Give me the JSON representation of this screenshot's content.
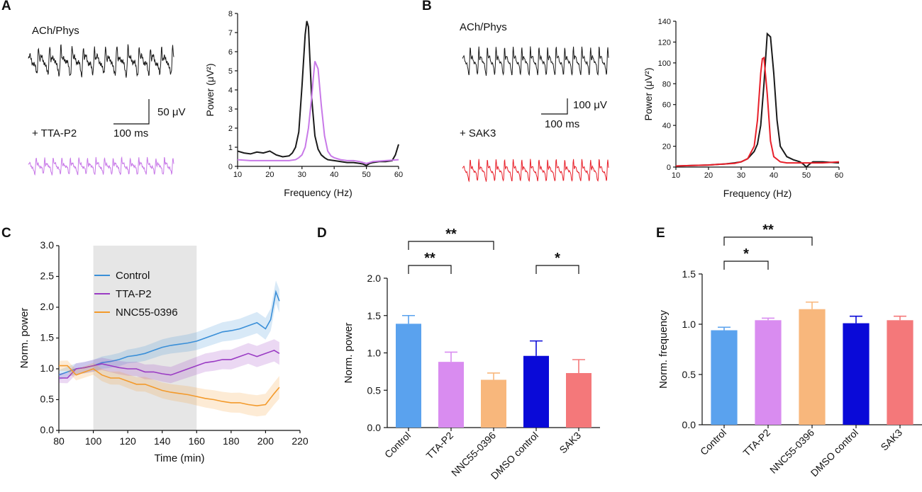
{
  "panel_labels": {
    "a": "A",
    "b": "B",
    "c": "C",
    "d": "D",
    "e": "E"
  },
  "colors": {
    "black": "#1a1a1a",
    "violet": "#c879e8",
    "red": "#e8202a",
    "blue": "#3a8fd8",
    "purple": "#9a3bc4",
    "orange": "#f39a2b",
    "gray_band": "#e6e6e6",
    "bar_control": "#5aa2ee",
    "bar_ttap2": "#d98cf0",
    "bar_nnc": "#f8b77c",
    "bar_dmso": "#0a0ad8",
    "bar_sak3": "#f4787a"
  },
  "panel_a": {
    "trace_top_label": "ACh/Phys",
    "trace_bottom_label": "+ TTA-P2",
    "scale_v": "50 μV",
    "scale_t": "100 ms"
  },
  "panel_b": {
    "trace_top_label": "ACh/Phys",
    "trace_bottom_label": "+ SAK3",
    "scale_v": "100 μV",
    "scale_t": "100 ms"
  },
  "chart_data": [
    {
      "id": "A-spectrum",
      "type": "line",
      "xlabel": "Frequency (Hz)",
      "ylabel": "Power (μV²)",
      "xlim": [
        10,
        60
      ],
      "ylim": [
        0,
        8
      ],
      "xticks": [
        10,
        20,
        30,
        40,
        50,
        60
      ],
      "yticks": [
        0,
        1,
        2,
        3,
        4,
        5,
        6,
        7,
        8
      ],
      "series": [
        {
          "name": "ACh/Phys",
          "color": "#1a1a1a",
          "x": [
            10,
            12,
            14,
            16,
            18,
            20,
            22,
            24,
            26,
            27,
            28,
            29,
            30,
            31,
            31.5,
            32,
            33,
            34,
            35,
            36,
            37,
            38,
            40,
            42,
            44,
            46,
            48,
            49,
            50,
            51,
            52,
            54,
            56,
            58,
            59,
            60
          ],
          "y": [
            0.8,
            0.7,
            0.65,
            0.75,
            0.7,
            0.8,
            0.6,
            0.5,
            0.55,
            0.7,
            1.0,
            1.8,
            4.2,
            6.9,
            7.6,
            7.3,
            3.6,
            1.6,
            0.9,
            0.6,
            0.45,
            0.35,
            0.3,
            0.25,
            0.2,
            0.2,
            0.15,
            0.12,
            0.05,
            0.15,
            0.2,
            0.25,
            0.25,
            0.3,
            0.6,
            1.15
          ]
        },
        {
          "name": "+ TTA-P2",
          "color": "#c879e8",
          "x": [
            10,
            14,
            18,
            22,
            26,
            28,
            29,
            30,
            31,
            32,
            33,
            33.5,
            34,
            35,
            36,
            37,
            38,
            39,
            40,
            42,
            44,
            46,
            48,
            50,
            52,
            56,
            60
          ],
          "y": [
            0.35,
            0.3,
            0.3,
            0.3,
            0.3,
            0.35,
            0.45,
            0.6,
            1.0,
            2.0,
            3.6,
            4.6,
            5.5,
            5.1,
            3.2,
            1.6,
            0.8,
            0.55,
            0.45,
            0.35,
            0.3,
            0.3,
            0.25,
            0.15,
            0.25,
            0.3,
            0.35
          ]
        }
      ]
    },
    {
      "id": "B-spectrum",
      "type": "line",
      "xlabel": "Frequency (Hz)",
      "ylabel": "Power (μV²)",
      "xlim": [
        10,
        60
      ],
      "ylim": [
        0,
        140
      ],
      "xticks": [
        10,
        20,
        30,
        40,
        50,
        60
      ],
      "yticks": [
        0,
        20,
        40,
        60,
        80,
        100,
        120,
        140
      ],
      "series": [
        {
          "name": "ACh/Phys",
          "color": "#1a1a1a",
          "x": [
            10,
            15,
            20,
            25,
            28,
            30,
            32,
            34,
            35,
            36,
            37,
            38,
            39,
            40,
            41,
            42,
            44,
            46,
            48,
            49,
            50,
            51,
            52,
            55,
            60
          ],
          "y": [
            1,
            1.5,
            2,
            3,
            4,
            5,
            8,
            15,
            22,
            40,
            80,
            128,
            125,
            90,
            45,
            20,
            10,
            7,
            5,
            3,
            0,
            3,
            5,
            5,
            4
          ]
        },
        {
          "name": "+ SAK3",
          "color": "#e8202a",
          "x": [
            10,
            15,
            20,
            25,
            28,
            30,
            32,
            34,
            35,
            36,
            36.5,
            37,
            38,
            39,
            40,
            42,
            44,
            46,
            48,
            50,
            52,
            55,
            60
          ],
          "y": [
            1,
            1.5,
            2,
            3,
            3.5,
            5,
            8,
            20,
            45,
            90,
            104,
            105,
            70,
            25,
            10,
            5,
            4,
            4,
            4,
            4,
            4,
            4,
            5
          ]
        }
      ]
    },
    {
      "id": "C-time",
      "type": "line",
      "xlabel": "Time (min)",
      "ylabel": "Norm. power",
      "xlim": [
        80,
        220
      ],
      "ylim": [
        0,
        3.0
      ],
      "xticks": [
        80,
        100,
        120,
        140,
        160,
        180,
        200,
        220
      ],
      "yticks": [
        0.0,
        0.5,
        1.0,
        1.5,
        2.0,
        2.5,
        3.0
      ],
      "shaded_interval": [
        100,
        160
      ],
      "series": [
        {
          "name": "Control",
          "color": "#3a8fd8",
          "x": [
            80,
            85,
            90,
            95,
            100,
            105,
            110,
            115,
            120,
            125,
            130,
            135,
            140,
            145,
            150,
            155,
            160,
            165,
            170,
            175,
            180,
            185,
            190,
            195,
            200,
            203,
            206,
            208
          ],
          "y": [
            0.9,
            0.95,
            1.0,
            1.02,
            1.05,
            1.1,
            1.12,
            1.15,
            1.2,
            1.22,
            1.25,
            1.3,
            1.35,
            1.38,
            1.4,
            1.42,
            1.45,
            1.5,
            1.55,
            1.6,
            1.62,
            1.65,
            1.7,
            1.75,
            1.65,
            1.8,
            2.25,
            2.1
          ]
        },
        {
          "name": "TTA-P2",
          "color": "#9a3bc4",
          "x": [
            80,
            85,
            90,
            95,
            100,
            105,
            110,
            115,
            120,
            125,
            130,
            135,
            140,
            145,
            150,
            155,
            160,
            165,
            170,
            175,
            180,
            185,
            190,
            195,
            200,
            205,
            208
          ],
          "y": [
            0.85,
            0.85,
            1.0,
            1.02,
            1.05,
            1.08,
            1.05,
            1.02,
            1.0,
            1.0,
            0.95,
            0.95,
            0.92,
            0.9,
            0.95,
            1.0,
            1.05,
            1.1,
            1.12,
            1.15,
            1.15,
            1.2,
            1.25,
            1.2,
            1.25,
            1.3,
            1.25
          ]
        },
        {
          "name": "NNC55-0396",
          "color": "#f39a2b",
          "x": [
            80,
            85,
            90,
            95,
            100,
            105,
            110,
            115,
            120,
            125,
            130,
            135,
            140,
            145,
            150,
            155,
            160,
            165,
            170,
            175,
            180,
            185,
            190,
            195,
            200,
            205,
            208
          ],
          "y": [
            1.05,
            1.05,
            0.9,
            0.95,
            1.0,
            0.9,
            0.85,
            0.85,
            0.8,
            0.75,
            0.75,
            0.7,
            0.65,
            0.62,
            0.6,
            0.58,
            0.55,
            0.52,
            0.5,
            0.47,
            0.45,
            0.45,
            0.42,
            0.4,
            0.42,
            0.6,
            0.7
          ]
        }
      ],
      "legend": [
        "Control",
        "TTA-P2",
        "NNC55-0396"
      ]
    },
    {
      "id": "D-bars",
      "type": "bar",
      "ylabel": "Norm. power",
      "ylim": [
        0,
        2.0
      ],
      "yticks": [
        0.0,
        0.5,
        1.0,
        1.5,
        2.0
      ],
      "categories": [
        "Control",
        "TTA-P2",
        "NNC55-0396",
        "DMSO control",
        "SAK3"
      ],
      "values": [
        1.39,
        0.88,
        0.64,
        0.96,
        0.73
      ],
      "errors": [
        0.11,
        0.13,
        0.09,
        0.2,
        0.18
      ],
      "significance": [
        {
          "from": 0,
          "to": 2,
          "label": "**",
          "level": 2
        },
        {
          "from": 0,
          "to": 1,
          "label": "**",
          "level": 1
        },
        {
          "from": 3,
          "to": 4,
          "label": "*",
          "level": 1
        }
      ]
    },
    {
      "id": "E-bars",
      "type": "bar",
      "ylabel": "Norm. frequency",
      "ylim": [
        0,
        1.5
      ],
      "yticks": [
        0.0,
        0.5,
        1.0,
        1.5
      ],
      "categories": [
        "Control",
        "TTA-P2",
        "NNC55-0396",
        "DMSO control",
        "SAK3"
      ],
      "values": [
        0.94,
        1.04,
        1.15,
        1.01,
        1.04
      ],
      "errors": [
        0.03,
        0.02,
        0.07,
        0.07,
        0.04
      ],
      "significance": [
        {
          "from": 0,
          "to": 2,
          "label": "**",
          "level": 2
        },
        {
          "from": 0,
          "to": 1,
          "label": "*",
          "level": 1
        }
      ]
    }
  ]
}
